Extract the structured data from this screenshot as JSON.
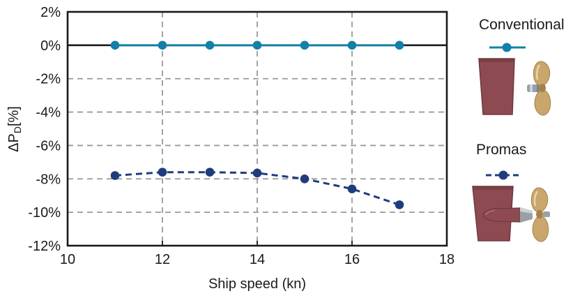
{
  "chart_data": {
    "type": "line",
    "x": [
      11,
      12,
      13,
      14,
      15,
      16,
      17
    ],
    "series": [
      {
        "name": "Conventional",
        "values": [
          0,
          0,
          0,
          0,
          0,
          0,
          0
        ],
        "color": "#1380a8",
        "line_style": "solid",
        "marker": "circle"
      },
      {
        "name": "Promas",
        "values": [
          -7.8,
          -7.6,
          -7.6,
          -7.65,
          -8.0,
          -8.6,
          -9.55
        ],
        "color": "#1f3d7c",
        "line_style": "dashed",
        "marker": "circle"
      }
    ],
    "xlabel": "Ship speed (kn)",
    "ylabel": {
      "prefix": "ΔP",
      "sub": "D",
      "suffix": "[%]"
    },
    "xlim": [
      10,
      18
    ],
    "ylim": [
      -12,
      2
    ],
    "xticks": [
      10,
      12,
      14,
      16,
      18
    ],
    "yticks": [
      {
        "value": 2,
        "label": "2%"
      },
      {
        "value": 0,
        "label": "0%"
      },
      {
        "value": -2,
        "label": "-2%"
      },
      {
        "value": -4,
        "label": "-4%"
      },
      {
        "value": -6,
        "label": "-6%"
      },
      {
        "value": -8,
        "label": "-8%"
      },
      {
        "value": -10,
        "label": "-10%"
      },
      {
        "value": -12,
        "label": "-12%"
      }
    ],
    "grid": {
      "x_lines": [
        12,
        14,
        16
      ],
      "y_lines": [
        -2,
        -4,
        -6,
        -8,
        -10
      ],
      "zero_line": 0,
      "style": "dashed"
    },
    "legend_position": "right"
  },
  "legend": {
    "items": [
      {
        "label": "Conventional",
        "swatch": "solid-teal-line-with-dot",
        "illustration": "conventional-rudder-and-propeller"
      },
      {
        "label": "Promas",
        "swatch": "dashed-navy-line-with-dot",
        "illustration": "promas-rudder-bulb-propeller"
      }
    ]
  },
  "colors": {
    "axis": "#1a1a1a",
    "grid": "#999999",
    "teal": "#1380a8",
    "navy": "#1f3d7c",
    "rudder": "#8d4b51",
    "rudder_dark": "#6e383e",
    "gold": "#c9a76c",
    "gold_dark": "#a2824a",
    "gold_light": "#e8d4ab",
    "steel": "#9aa0a6",
    "steel_light": "#cdd2d6"
  }
}
